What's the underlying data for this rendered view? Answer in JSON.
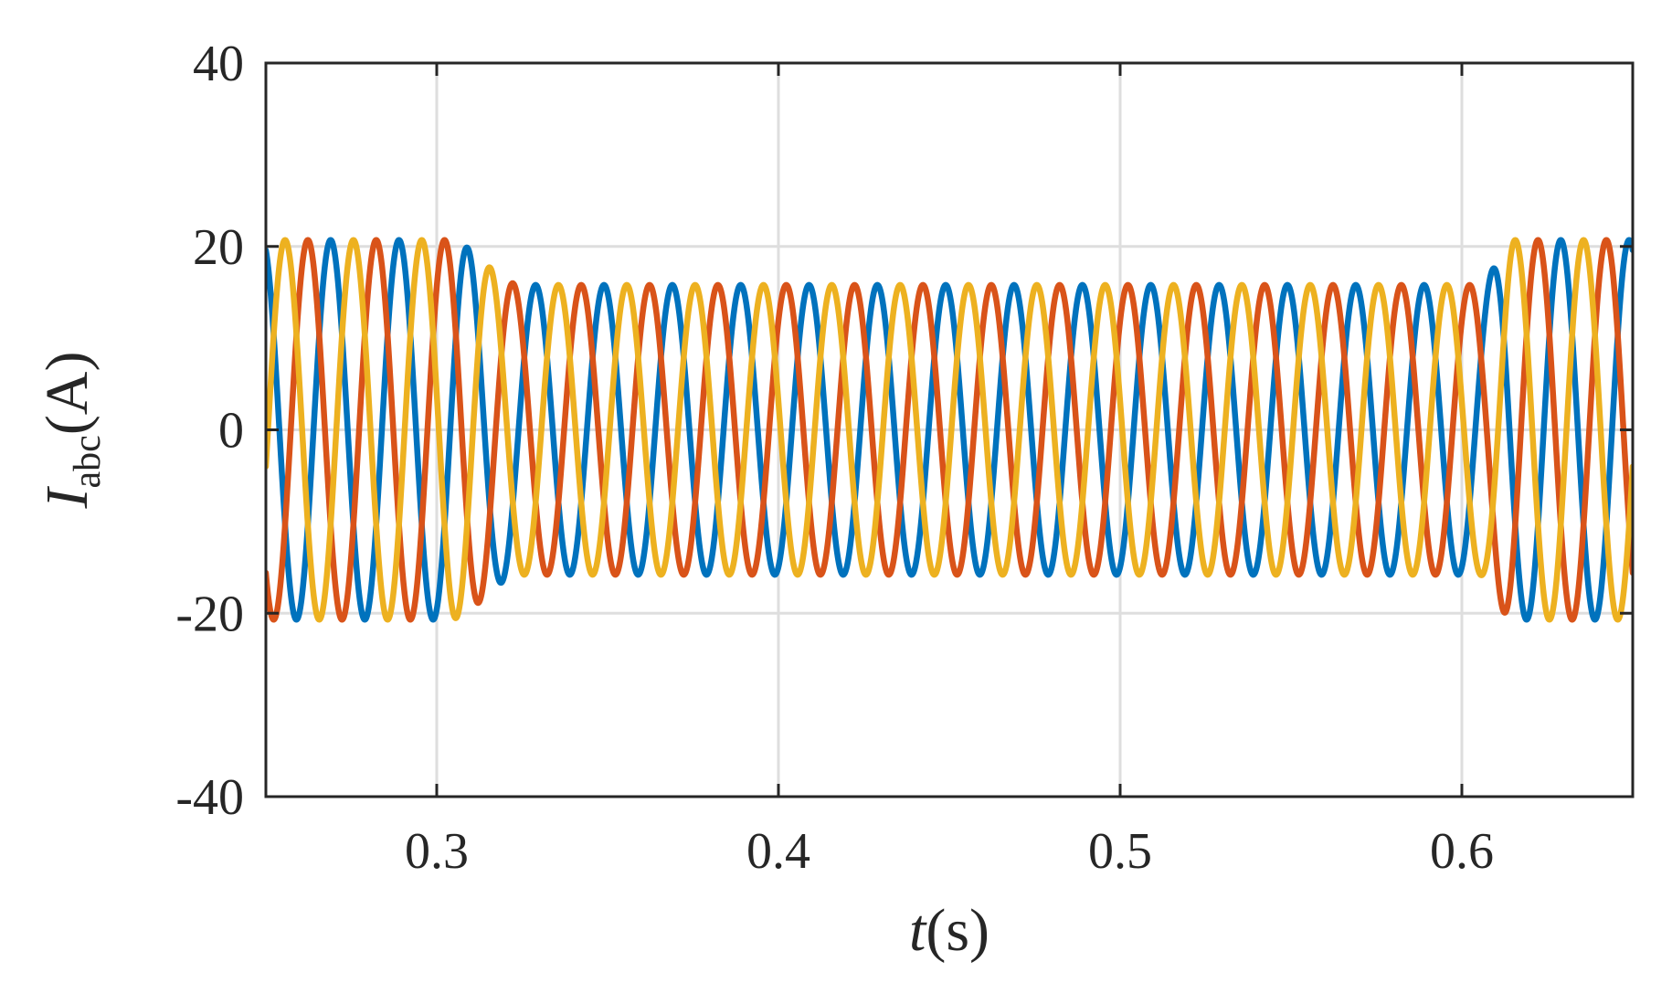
{
  "chart_data": {
    "type": "line",
    "title": "",
    "xlabel": {
      "main": "t",
      "unit": "(s)"
    },
    "ylabel": {
      "main": "I",
      "sub": "abc",
      "unit": "(A)"
    },
    "xlim": [
      0.25,
      0.65
    ],
    "ylim": [
      -40,
      40
    ],
    "xticks": [
      0.3,
      0.4,
      0.5,
      0.6
    ],
    "yticks": [
      -40,
      -20,
      0,
      20,
      40
    ],
    "xtick_labels": [
      "0.3",
      "0.4",
      "0.5",
      "0.6"
    ],
    "ytick_labels": [
      "-40",
      "-20",
      "0",
      "20",
      "40"
    ],
    "grid": true,
    "legend": "none",
    "signal": {
      "frequency_hz": 50,
      "phase_shift_deg": 120,
      "segments": [
        {
          "t_start": 0.25,
          "t_end": 0.303,
          "amplitude": 20.7
        },
        {
          "t_start": 0.303,
          "t_end": 0.325,
          "amplitude_from": 20.7,
          "amplitude_to": 15.8
        },
        {
          "t_start": 0.325,
          "t_end": 0.605,
          "amplitude": 15.8
        },
        {
          "t_start": 0.605,
          "t_end": 0.615,
          "amplitude_from": 15.8,
          "amplitude_to": 20.7
        },
        {
          "t_start": 0.615,
          "t_end": 0.65,
          "amplitude": 20.7
        }
      ]
    },
    "series": [
      {
        "phase": "a",
        "color": "#0072BD",
        "phase_offset_deg": 0
      },
      {
        "phase": "b",
        "color": "#D95319",
        "phase_offset_deg": 120
      },
      {
        "phase": "c",
        "color": "#EDB120",
        "phase_offset_deg": -120
      }
    ]
  }
}
